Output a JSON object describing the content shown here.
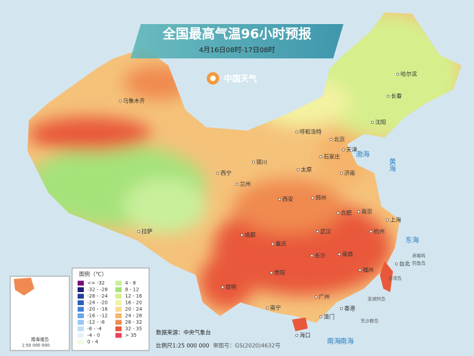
{
  "header": {
    "title": "全国最高气温96小时预报",
    "subtitle": "4月16日08时-17日08时",
    "brand": "中国天气"
  },
  "legend": {
    "title": "图例（℃）",
    "items": [
      {
        "label": "<= -32",
        "color": "#7a0a7a"
      },
      {
        "label": "-32 - -28",
        "color": "#1a1f7a"
      },
      {
        "label": "-28 - -24",
        "color": "#1f3f9a"
      },
      {
        "label": "-24 - -20",
        "color": "#2a5fbf"
      },
      {
        "label": "-20 - -16",
        "color": "#3f80d8"
      },
      {
        "label": "-16 - -12",
        "color": "#6aa6e8"
      },
      {
        "label": "-12 - -8",
        "color": "#95c6f2"
      },
      {
        "label": "-8 - -4",
        "color": "#bfe0f7"
      },
      {
        "label": "-4 - 0",
        "color": "#e3f2fb"
      },
      {
        "label": "0 - 4",
        "color": "#f4fbe8"
      },
      {
        "label": "4 - 8",
        "color": "#c9ef9b"
      },
      {
        "label": "8 - 12",
        "color": "#a6e27a"
      },
      {
        "label": "12 - 16",
        "color": "#d6ef8c"
      },
      {
        "label": "16 - 20",
        "color": "#f3f2a0"
      },
      {
        "label": "20 - 24",
        "color": "#f8d88a"
      },
      {
        "label": "24 - 28",
        "color": "#f5b46a"
      },
      {
        "label": "28 - 32",
        "color": "#f08a50"
      },
      {
        "label": "32 - 35",
        "color": "#e9583a"
      },
      {
        "label": "> 35",
        "color": "#e8405a"
      }
    ]
  },
  "cities": [
    "乌鲁木齐",
    "哈尔滨",
    "长春",
    "沈阳",
    "呼和浩特",
    "北京",
    "天津",
    "石家庄",
    "太原",
    "银川",
    "济南",
    "西宁",
    "兰州",
    "郑州",
    "西安",
    "合肥",
    "南京",
    "上海",
    "拉萨",
    "成都",
    "武汉",
    "杭州",
    "重庆",
    "长沙",
    "南昌",
    "贵阳",
    "福州",
    "台北",
    "昆明",
    "南宁",
    "广州",
    "香港",
    "澳门",
    "海口"
  ],
  "seas": [
    "黄海",
    "渤海",
    "东海",
    "南海",
    "南海"
  ],
  "islands": [
    "钓鱼岛",
    "赤尾屿",
    "台湾岛",
    "澎湖列岛",
    "东沙群岛"
  ],
  "inset": {
    "label": "南海诸岛",
    "scale": "1:50 000 000"
  },
  "footer": {
    "source": "数据来源：中央气象台",
    "scale": "比例尺1:25 000 000",
    "approval": "审图号：GS(2020)4632号"
  }
}
